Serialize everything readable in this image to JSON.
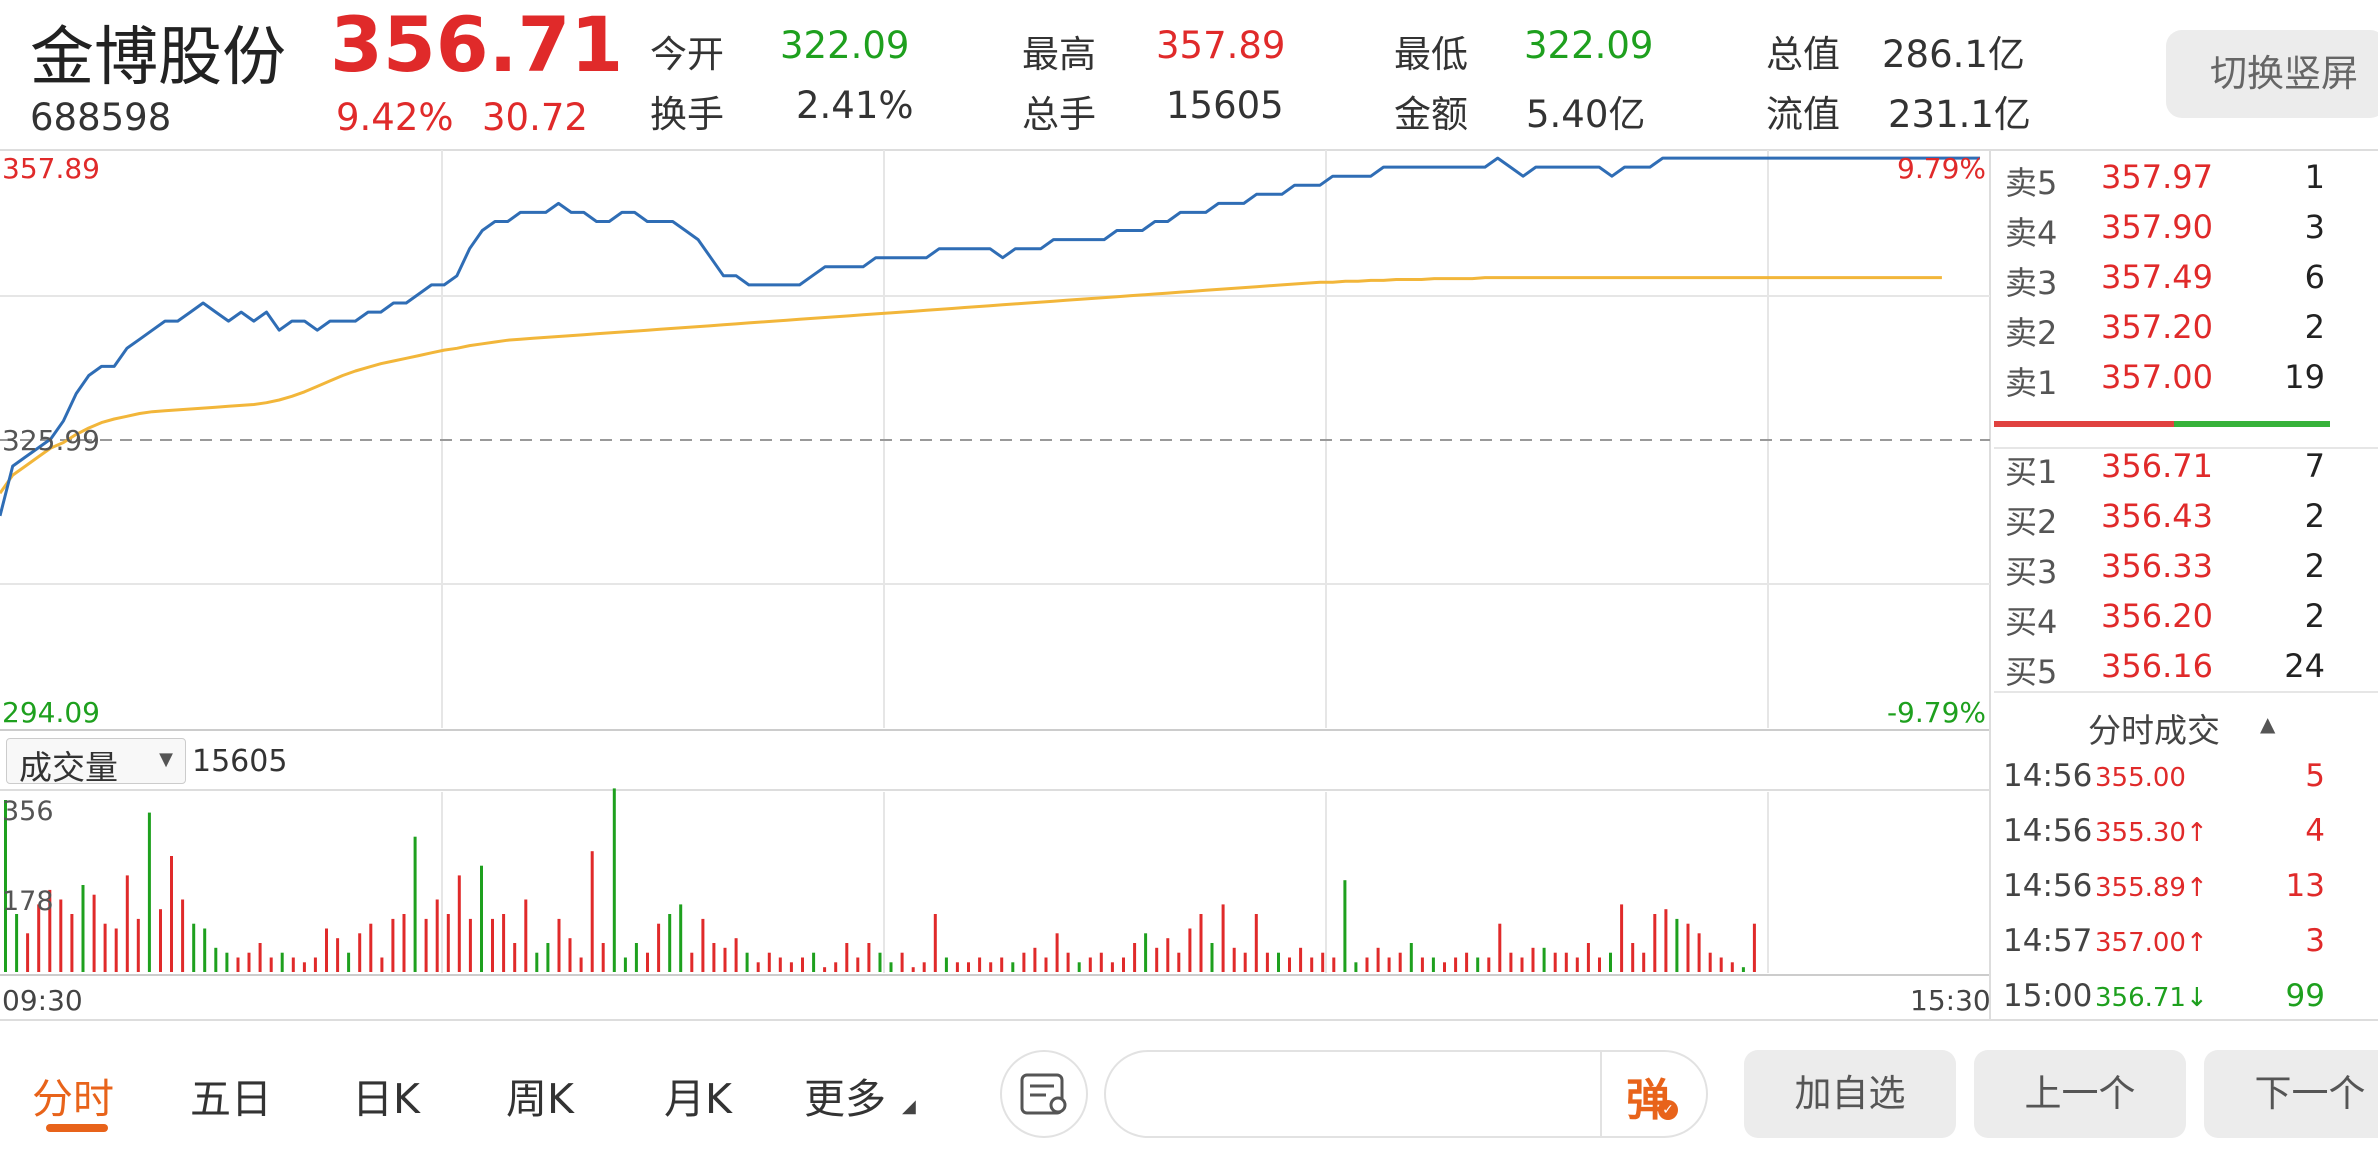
{
  "stock": {
    "name": "金博股份",
    "code": "688598",
    "price": "356.71",
    "change_pct": "9.42%",
    "change_amt": "30.72"
  },
  "stats": {
    "open_label": "今开",
    "open": "322.09",
    "high_label": "最高",
    "high": "357.89",
    "low_label": "最低",
    "low": "322.09",
    "mktcap_label": "总值",
    "mktcap": "286.1亿",
    "turnover_label": "换手",
    "turnover": "2.41%",
    "volume_label": "总手",
    "volume": "15605",
    "amount_label": "金额",
    "amount": "5.40亿",
    "float_label": "流值",
    "float": "231.1亿"
  },
  "switch_button": "切换竖屏",
  "chart_labels": {
    "max_price": "357.89",
    "base_price": "325.99",
    "min_price": "294.09",
    "max_pct": "9.79%",
    "min_pct": "-9.79%",
    "volume_selector": "成交量",
    "volume_value": "15605",
    "vol_max": "356",
    "vol_mid": "178",
    "time_start": "09:30",
    "time_end": "15:30"
  },
  "orderbook": {
    "asks": [
      {
        "label": "卖5",
        "price": "357.97",
        "qty": "1"
      },
      {
        "label": "卖4",
        "price": "357.90",
        "qty": "3"
      },
      {
        "label": "卖3",
        "price": "357.49",
        "qty": "6"
      },
      {
        "label": "卖2",
        "price": "357.20",
        "qty": "2"
      },
      {
        "label": "卖1",
        "price": "357.00",
        "qty": "19"
      }
    ],
    "bids": [
      {
        "label": "买1",
        "price": "356.71",
        "qty": "7"
      },
      {
        "label": "买2",
        "price": "356.43",
        "qty": "2"
      },
      {
        "label": "买3",
        "price": "356.33",
        "qty": "2"
      },
      {
        "label": "买4",
        "price": "356.20",
        "qty": "2"
      },
      {
        "label": "买5",
        "price": "356.16",
        "qty": "24"
      }
    ]
  },
  "ticks_header": "分时成交",
  "ticks": [
    {
      "time": "14:56",
      "price": "355.00",
      "vol": "5",
      "color": "#e02a2a"
    },
    {
      "time": "14:56",
      "price": "355.30↑",
      "vol": "4",
      "color": "#e02a2a"
    },
    {
      "time": "14:56",
      "price": "355.89↑",
      "vol": "13",
      "color": "#e02a2a"
    },
    {
      "time": "14:57",
      "price": "357.00↑",
      "vol": "3",
      "color": "#e02a2a"
    },
    {
      "time": "15:00",
      "price": "356.71↓",
      "vol": "99",
      "color": "#1ea01e"
    }
  ],
  "tabs": [
    "分时",
    "五日",
    "日K",
    "周K",
    "月K",
    "更多"
  ],
  "danmaku_button": "弹",
  "actions": {
    "add": "加自选",
    "prev": "上一个",
    "next": "下一个"
  },
  "colors": {
    "up": "#e02a2a",
    "down": "#1ea01e",
    "price_line": "#2f6db5",
    "avg_line": "#f2b63a",
    "accent": "#e8631a"
  },
  "chart_data": {
    "type": "line",
    "ylim": [
      294.09,
      357.89
    ],
    "base": 325.99,
    "x_range": [
      "09:30",
      "15:30"
    ],
    "series": [
      {
        "values": [
          317.5,
          323,
          324,
          325,
          326,
          328,
          331,
          333,
          334,
          334,
          336,
          337,
          338,
          339,
          339,
          340,
          341,
          340,
          339,
          340,
          339,
          340,
          338,
          339,
          339,
          338,
          339,
          339,
          339,
          340,
          340,
          341,
          341,
          342,
          343,
          343,
          344,
          347,
          349,
          350,
          350,
          351,
          351,
          351,
          352,
          351,
          351,
          350,
          350,
          351,
          351,
          350,
          350,
          350,
          349,
          348,
          346,
          344,
          344,
          343,
          343,
          343,
          343,
          343,
          344,
          345,
          345,
          345,
          345,
          346,
          346,
          346,
          346,
          346,
          347,
          347,
          347,
          347,
          347,
          346,
          347,
          347,
          347,
          348,
          348,
          348,
          348,
          348,
          349,
          349,
          349,
          350,
          350,
          351,
          351,
          351,
          352,
          352,
          352,
          353,
          353,
          353,
          354,
          354,
          354,
          355,
          355,
          355,
          355,
          356,
          356,
          356,
          356,
          356,
          356,
          356,
          356,
          356,
          357,
          356,
          355,
          356,
          356,
          356,
          356,
          356,
          356,
          355,
          356,
          356,
          356,
          357,
          357,
          357,
          357,
          357,
          357,
          357,
          357,
          357,
          357,
          357,
          357,
          357,
          357,
          357,
          357,
          357,
          357,
          357,
          357,
          357,
          357,
          357,
          357,
          357,
          357
        ]
      },
      {
        "values": [
          320,
          322,
          323,
          324,
          325,
          325.6,
          326.5,
          327.2,
          327.8,
          328.2,
          328.5,
          328.8,
          329,
          329.1,
          329.2,
          329.3,
          329.4,
          329.5,
          329.6,
          329.7,
          329.8,
          330,
          330.3,
          330.7,
          331.2,
          331.8,
          332.4,
          333,
          333.5,
          333.9,
          334.3,
          334.6,
          334.9,
          335.2,
          335.5,
          335.8,
          336,
          336.3,
          336.5,
          336.7,
          336.9,
          337,
          337.1,
          337.2,
          337.3,
          337.4,
          337.5,
          337.6,
          337.7,
          337.8,
          337.9,
          338,
          338.1,
          338.2,
          338.3,
          338.4,
          338.5,
          338.6,
          338.7,
          338.8,
          338.9,
          339,
          339.1,
          339.2,
          339.3,
          339.4,
          339.5,
          339.6,
          339.7,
          339.8,
          339.9,
          340,
          340.1,
          340.2,
          340.3,
          340.4,
          340.5,
          340.6,
          340.7,
          340.8,
          340.9,
          341,
          341.1,
          341.2,
          341.3,
          341.4,
          341.5,
          341.6,
          341.7,
          341.8,
          341.9,
          342,
          342.1,
          342.2,
          342.3,
          342.4,
          342.5,
          342.6,
          342.7,
          342.8,
          342.9,
          343,
          343.1,
          343.2,
          343.3,
          343.3,
          343.4,
          343.4,
          343.5,
          343.5,
          343.6,
          343.6,
          343.6,
          343.7,
          343.7,
          343.7,
          343.7,
          343.8,
          343.8,
          343.8,
          343.8,
          343.8,
          343.8,
          343.8,
          343.8,
          343.8,
          343.8,
          343.8,
          343.8,
          343.8,
          343.8,
          343.8,
          343.8,
          343.8,
          343.8,
          343.8,
          343.8,
          343.8,
          343.8,
          343.8,
          343.8,
          343.8,
          343.8,
          343.8,
          343.8,
          343.8,
          343.8,
          343.8,
          343.8,
          343.8,
          343.8,
          343.8,
          343.8,
          343.8
        ]
      }
    ],
    "volume": [
      356,
      120,
      80,
      140,
      170,
      150,
      120,
      180,
      160,
      100,
      90,
      200,
      110,
      330,
      130,
      240,
      150,
      100,
      90,
      50,
      40,
      30,
      40,
      60,
      30,
      40,
      30,
      20,
      30,
      90,
      70,
      40,
      80,
      100,
      30,
      110,
      120,
      280,
      110,
      150,
      120,
      200,
      110,
      220,
      110,
      120,
      60,
      150,
      40,
      60,
      110,
      70,
      30,
      250,
      60,
      380,
      30,
      60,
      40,
      100,
      120,
      140,
      40,
      110,
      60,
      50,
      70,
      40,
      20,
      40,
      30,
      20,
      30,
      40,
      10,
      20,
      60,
      30,
      60,
      40,
      20,
      40,
      10,
      20,
      120,
      30,
      20,
      20,
      30,
      20,
      30,
      20,
      40,
      50,
      30,
      80,
      40,
      20,
      30,
      40,
      20,
      30,
      60,
      80,
      50,
      70,
      40,
      90,
      120,
      60,
      140,
      50,
      40,
      120,
      40,
      40,
      30,
      50,
      30,
      40,
      30,
      190,
      20,
      30,
      50,
      30,
      40,
      60,
      30,
      30,
      20,
      30,
      40,
      30,
      30,
      100,
      40,
      30,
      50,
      50,
      40,
      40,
      30,
      60,
      30,
      40,
      140,
      60,
      40,
      120,
      130,
      110,
      100,
      80,
      40,
      30,
      20,
      10,
      100
    ]
  }
}
